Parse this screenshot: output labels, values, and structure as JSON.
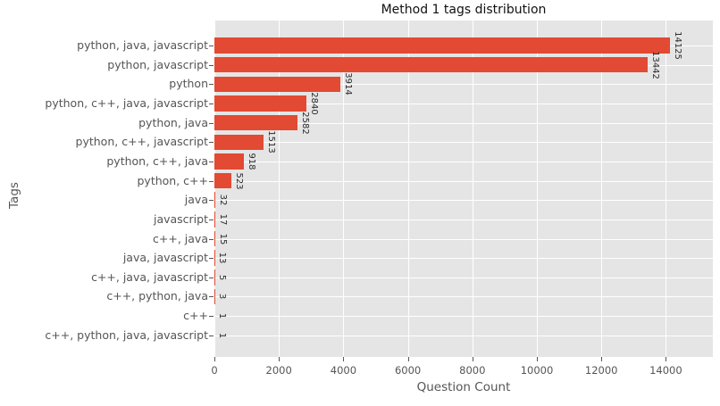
{
  "chart_data": {
    "type": "bar",
    "orientation": "horizontal",
    "title": "Method 1 tags distribution",
    "xlabel": "Question Count",
    "ylabel": "Tags",
    "categories": [
      "python, java, javascript",
      "python, javascript",
      "python",
      "python, c++, java, javascript",
      "python, java",
      "python, c++, javascript",
      "python, c++, java",
      "python, c++",
      "java",
      "javascript",
      "c++, java",
      "java, javascript",
      "c++, java, javascript",
      "c++, python, java",
      "c++",
      "c++, python, java, javascript"
    ],
    "values": [
      14125,
      13442,
      3914,
      2840,
      2582,
      1513,
      918,
      523,
      32,
      17,
      15,
      13,
      5,
      3,
      1,
      1
    ],
    "value_labels": [
      "14125",
      "13442",
      "3914",
      "2840",
      "2582",
      "1513",
      "918",
      "523",
      "32",
      "17",
      "15",
      "13",
      "5",
      "3",
      "1",
      "1"
    ],
    "x_ticks": [
      0,
      2000,
      4000,
      6000,
      8000,
      10000,
      12000,
      14000
    ],
    "x_tick_labels": [
      "0",
      "2000",
      "4000",
      "6000",
      "8000",
      "10000",
      "12000",
      "14000"
    ],
    "xlim": [
      0,
      15457
    ],
    "grid": true,
    "legend": null,
    "colors": {
      "bar": "#e24a33",
      "plot_background": "#e5e5e5",
      "grid": "#ffffff",
      "tick": "#555555",
      "label_text": "#555555",
      "title_text": "#111111",
      "value_text": "#2b2b2b"
    }
  }
}
